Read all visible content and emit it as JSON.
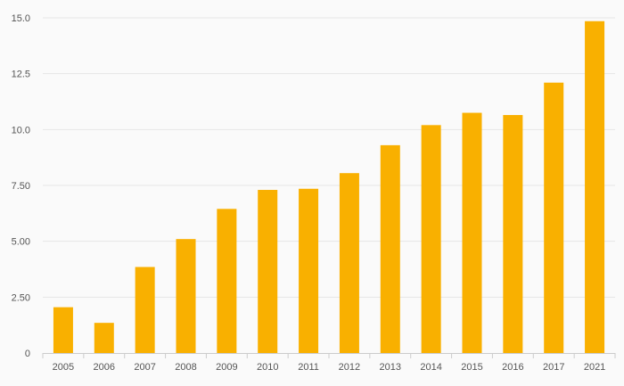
{
  "chart_data": {
    "type": "bar",
    "categories": [
      "2005",
      "2006",
      "2007",
      "2008",
      "2009",
      "2010",
      "2011",
      "2012",
      "2013",
      "2014",
      "2015",
      "2016",
      "2017",
      "2021"
    ],
    "values": [
      2.05,
      1.35,
      3.85,
      5.1,
      6.45,
      7.3,
      7.35,
      8.05,
      9.3,
      10.2,
      10.75,
      10.65,
      12.1,
      14.85
    ],
    "title": "",
    "xlabel": "",
    "ylabel": "",
    "ylim": [
      0,
      15
    ],
    "yticks": [
      0,
      2.5,
      5,
      7.5,
      10,
      12.5,
      15
    ],
    "ytick_labels": [
      "0",
      "2.50",
      "5.00",
      "7.50",
      "10.0",
      "12.5",
      "15.0"
    ],
    "grid": true,
    "legend": "none",
    "colors": {
      "bar": "#F9B000",
      "grid": "#e6e6e6",
      "axis": "#cccccc",
      "text": "#555555",
      "background": "#fafafa"
    }
  }
}
